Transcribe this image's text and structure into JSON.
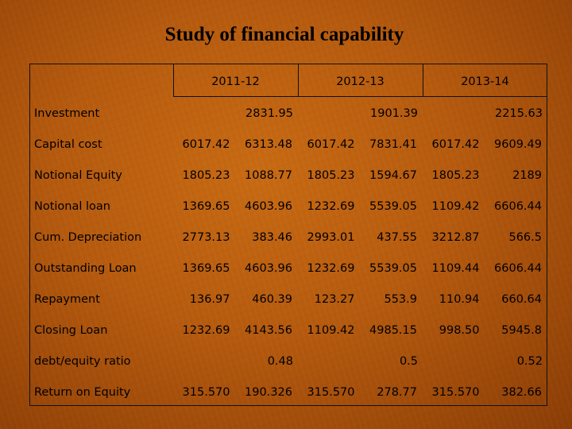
{
  "title": "Study of financial capability",
  "years": [
    "2011-12",
    "2012-13",
    "2013-14"
  ],
  "rows": [
    {
      "label": "Investment",
      "values": [
        "2831.95",
        "1901.39",
        "2215.63"
      ],
      "merged": true
    },
    {
      "label": "Capital cost",
      "values": [
        "6017.42",
        "6313.48",
        "6017.42",
        "7831.41",
        "6017.42",
        "9609.49"
      ]
    },
    {
      "label": "Notional Equity",
      "values": [
        "1805.23",
        "1088.77",
        "1805.23",
        "1594.67",
        "1805.23",
        "2189"
      ]
    },
    {
      "label": "Notional loan",
      "values": [
        "1369.65",
        "4603.96",
        "1232.69",
        "5539.05",
        "1109.42",
        "6606.44"
      ]
    },
    {
      "label": "Cum. Depreciation",
      "values": [
        "2773.13",
        "383.46",
        "2993.01",
        "437.55",
        "3212.87",
        "566.5"
      ]
    },
    {
      "label": "Outstanding Loan",
      "values": [
        "1369.65",
        "4603.96",
        "1232.69",
        "5539.05",
        "1109.44",
        "6606.44"
      ]
    },
    {
      "label": "Repayment",
      "values": [
        "136.97",
        "460.39",
        "123.27",
        "553.9",
        "110.94",
        "660.64"
      ]
    },
    {
      "label": "Closing Loan",
      "values": [
        "1232.69",
        "4143.56",
        "1109.42",
        "4985.15",
        "998.50",
        "5945.8"
      ]
    },
    {
      "label": "debt/equity ratio",
      "values": [
        "0.48",
        "0.5",
        "0.52"
      ],
      "merged": true
    },
    {
      "label": "Return on Equity",
      "values": [
        "315.570",
        "190.326",
        "315.570",
        "278.77",
        "315.570",
        "382.66"
      ]
    }
  ]
}
